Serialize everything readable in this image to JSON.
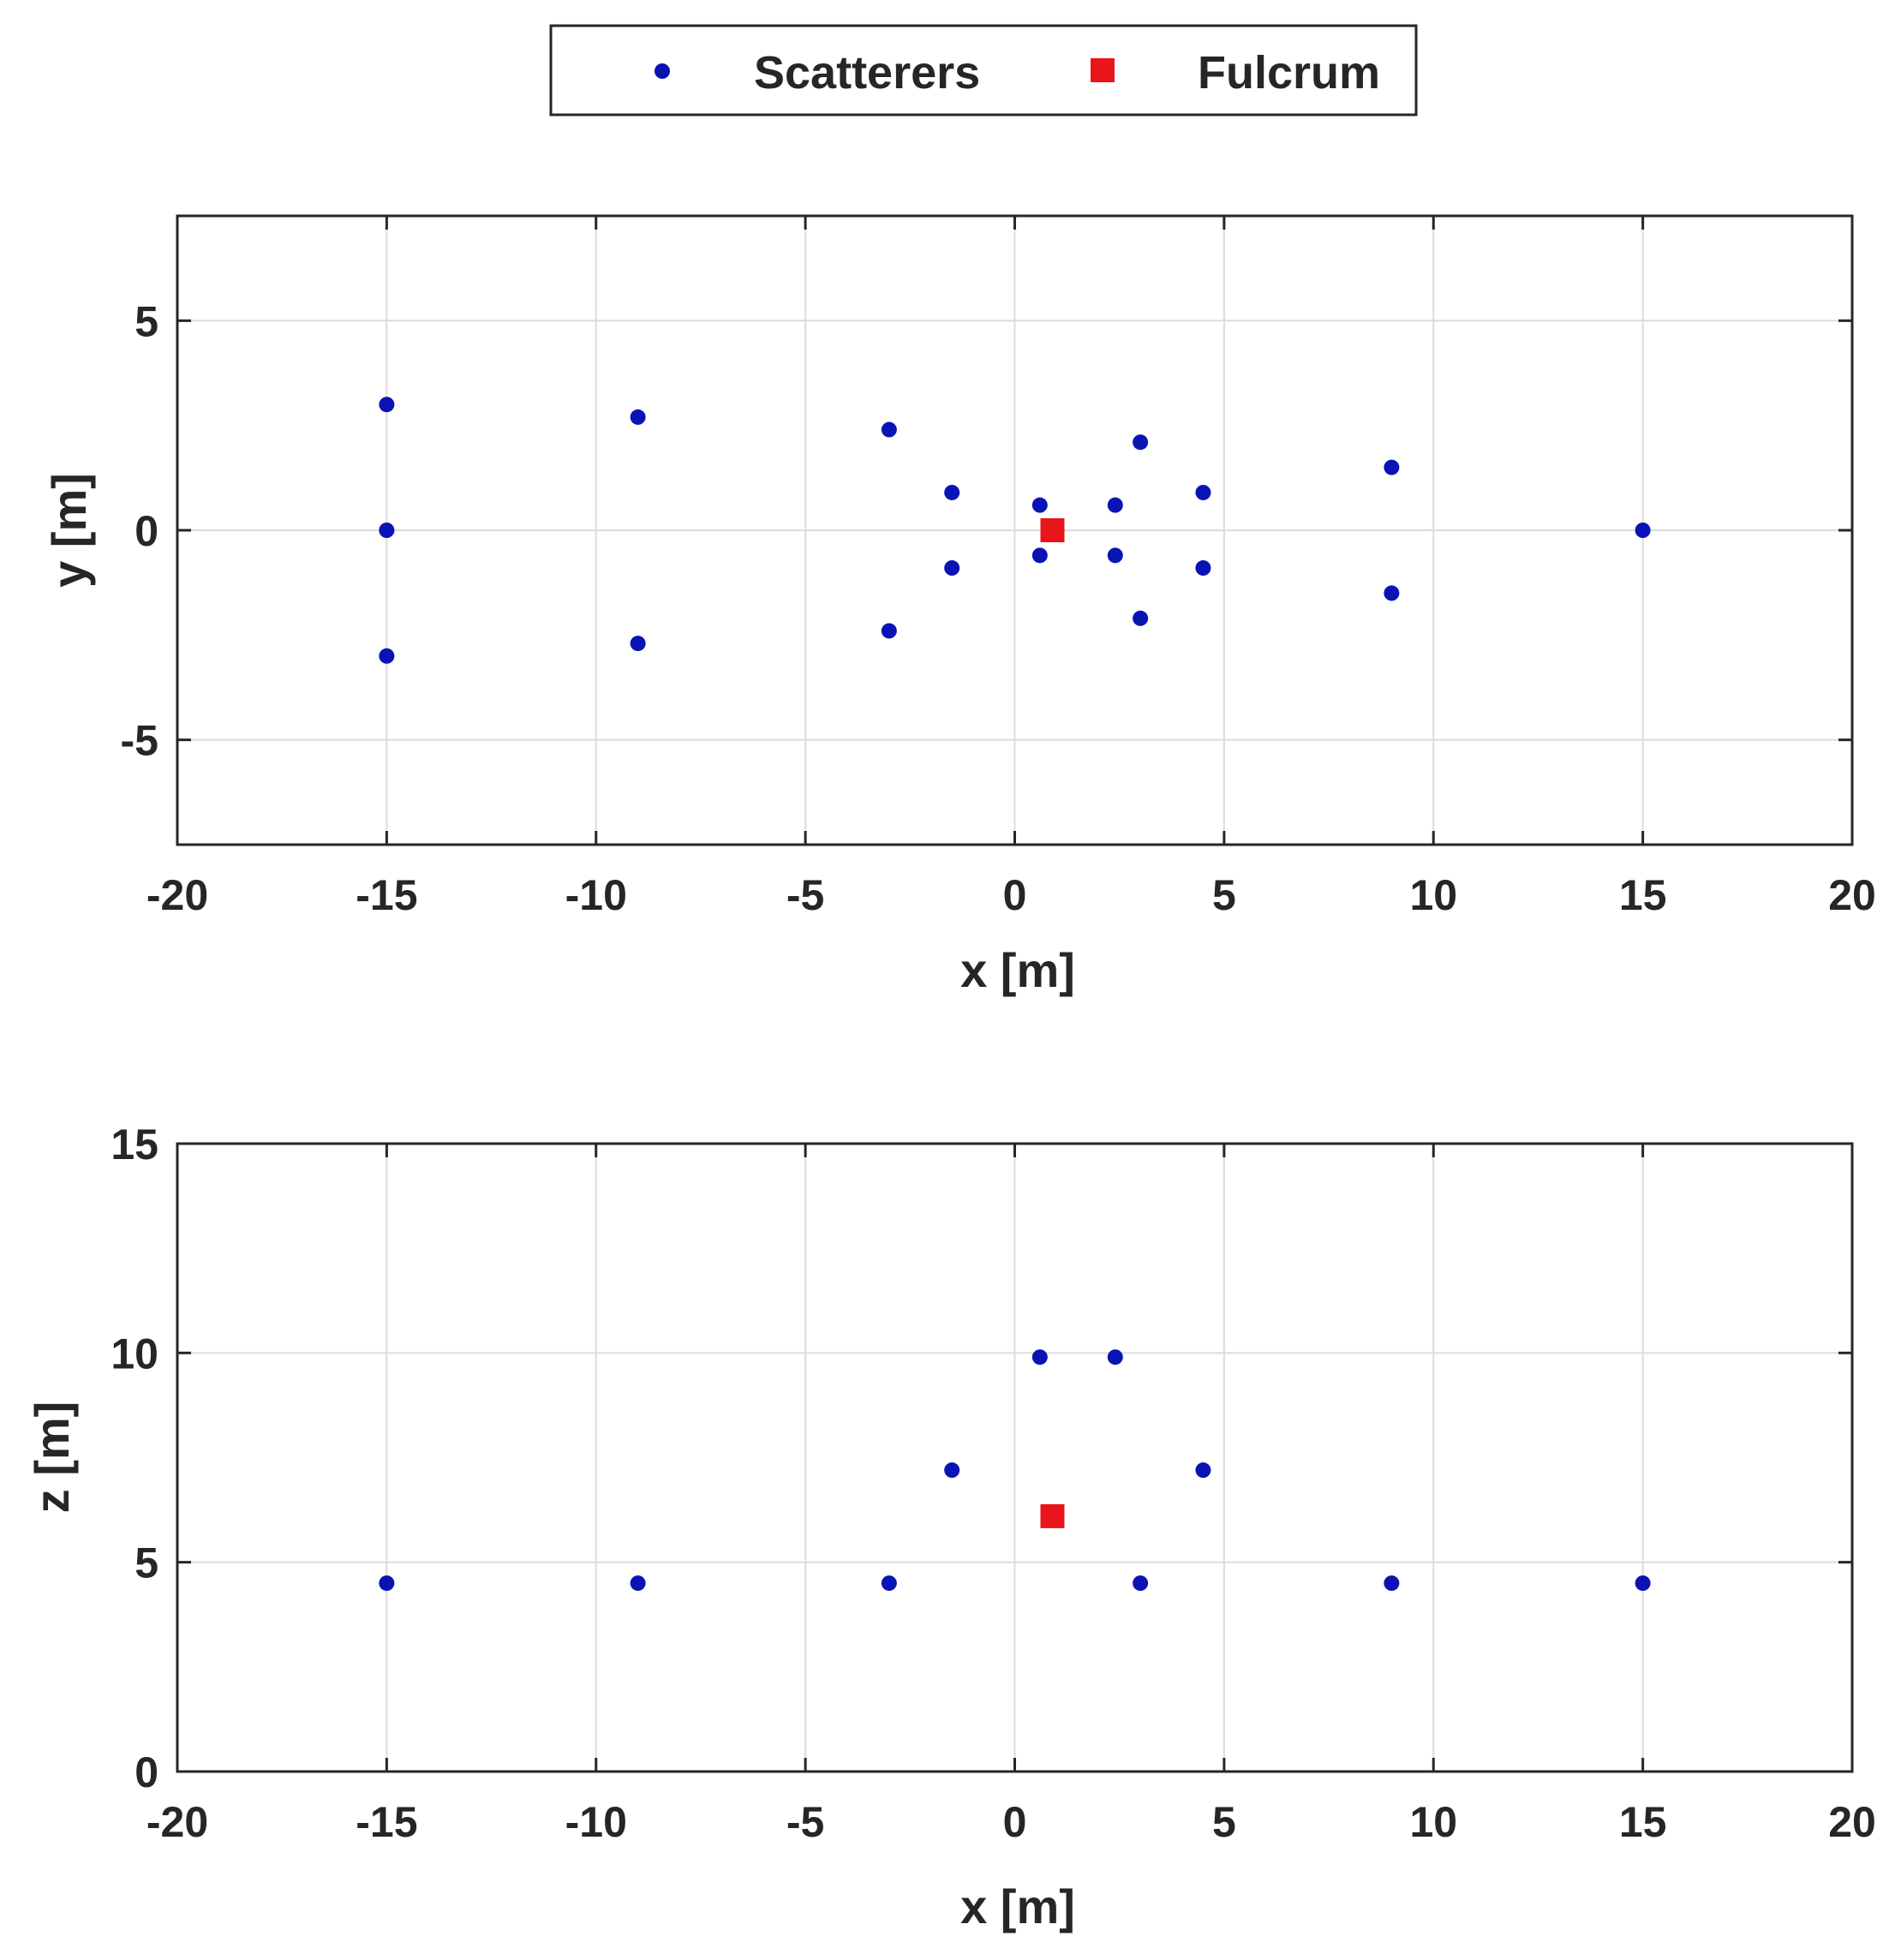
{
  "chart_data": [
    {
      "type": "scatter",
      "title": "",
      "xlabel": "x [m]",
      "ylabel": "y [m]",
      "xlim": [
        -20,
        20
      ],
      "ylim": [
        -7.5,
        7.5
      ],
      "xticks": [
        -20,
        -15,
        -10,
        -5,
        0,
        5,
        10,
        15,
        20
      ],
      "yticks": [
        -5,
        0,
        5
      ],
      "grid": true,
      "series": [
        {
          "name": "Scatterers",
          "marker": "circle",
          "color": "#0a14b4",
          "points": [
            [
              -15,
              3
            ],
            [
              -15,
              0
            ],
            [
              -15,
              -3
            ],
            [
              -9,
              2.7
            ],
            [
              -9,
              -2.7
            ],
            [
              -3,
              2.4
            ],
            [
              -3,
              -2.4
            ],
            [
              -1.5,
              0.9
            ],
            [
              -1.5,
              -0.9
            ],
            [
              0.6,
              0.6
            ],
            [
              0.6,
              -0.6
            ],
            [
              2.4,
              0.6
            ],
            [
              2.4,
              -0.6
            ],
            [
              3,
              2.1
            ],
            [
              3,
              -2.1
            ],
            [
              4.5,
              0.9
            ],
            [
              4.5,
              -0.9
            ],
            [
              9,
              1.5
            ],
            [
              9,
              -1.5
            ],
            [
              15,
              0
            ]
          ]
        },
        {
          "name": "Fulcrum",
          "marker": "square",
          "color": "#e8161b",
          "points": [
            [
              0.9,
              0
            ]
          ]
        }
      ]
    },
    {
      "type": "scatter",
      "title": "",
      "xlabel": "x [m]",
      "ylabel": "z [m]",
      "xlim": [
        -20,
        20
      ],
      "ylim": [
        0,
        15
      ],
      "xticks": [
        -20,
        -15,
        -10,
        -5,
        0,
        5,
        10,
        15,
        20
      ],
      "yticks": [
        0,
        5,
        10,
        15
      ],
      "grid": true,
      "series": [
        {
          "name": "Scatterers",
          "marker": "circle",
          "color": "#0a14b4",
          "points": [
            [
              -15,
              4.5
            ],
            [
              -9,
              4.5
            ],
            [
              -3,
              4.5
            ],
            [
              3,
              4.5
            ],
            [
              9,
              4.5
            ],
            [
              15,
              4.5
            ],
            [
              -1.5,
              7.2
            ],
            [
              4.5,
              7.2
            ],
            [
              0.6,
              9.9
            ],
            [
              2.4,
              9.9
            ]
          ]
        },
        {
          "name": "Fulcrum",
          "marker": "square",
          "color": "#e8161b",
          "points": [
            [
              0.9,
              6.1
            ]
          ]
        }
      ]
    }
  ],
  "legend": {
    "placement": "top-center",
    "entries": [
      {
        "label": "Scatterers",
        "marker": "circle",
        "color": "#0a14b4"
      },
      {
        "label": "Fulcrum",
        "marker": "square",
        "color": "#e8161b"
      }
    ]
  }
}
